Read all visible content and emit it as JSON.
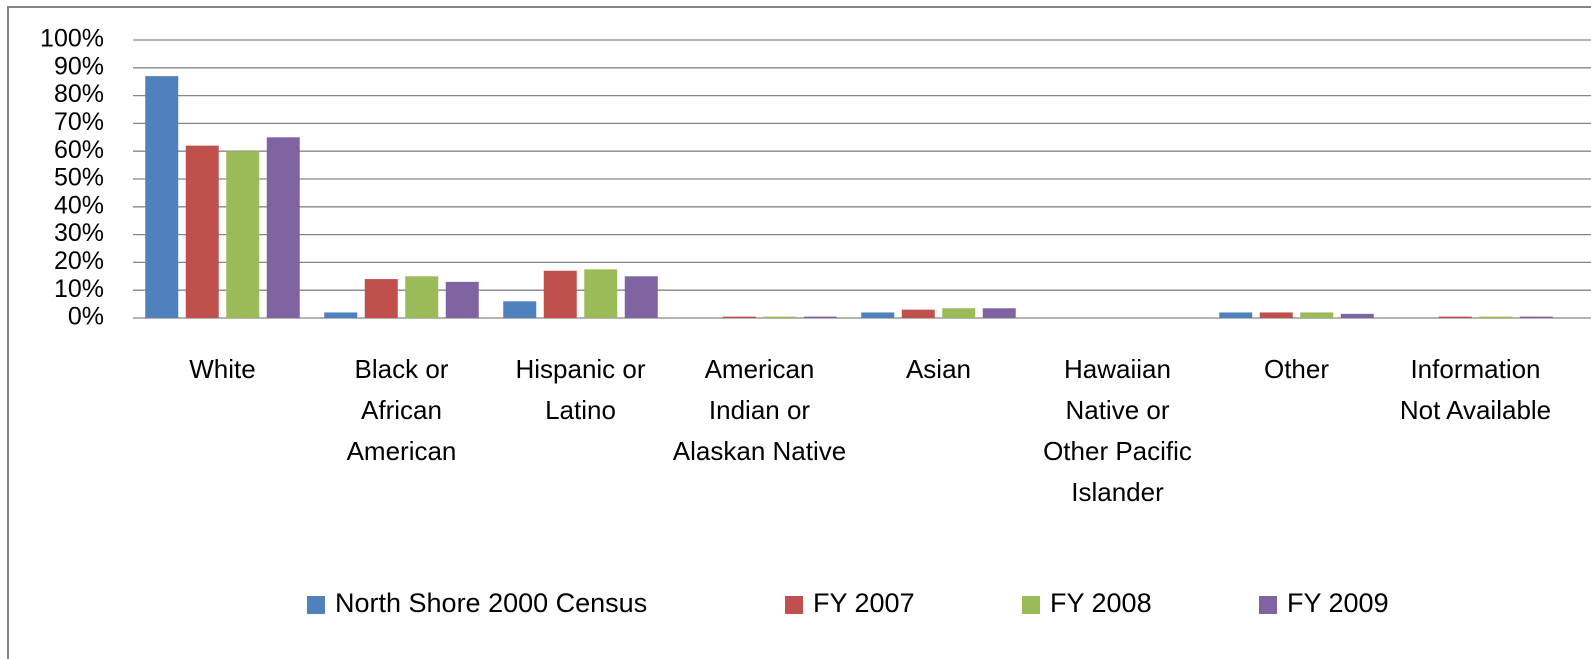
{
  "chart_data": {
    "type": "bar",
    "categories": [
      "White",
      "Black or African American",
      "Hispanic or Latino",
      "American Indian or Alaskan Native",
      "Asian",
      "Hawaiian Native or Other Pacific Islander",
      "Other",
      "Information Not Available"
    ],
    "series": [
      {
        "name": "North Shore 2000 Census",
        "color": "#4f81bd",
        "values": [
          87,
          2,
          6,
          0,
          2,
          0,
          2,
          0
        ]
      },
      {
        "name": "FY 2007",
        "color": "#c0504d",
        "values": [
          62,
          14,
          17,
          0.5,
          3,
          0,
          2,
          0.5
        ]
      },
      {
        "name": "FY 2008",
        "color": "#9bbb59",
        "values": [
          60,
          15,
          17.5,
          0.5,
          3.5,
          0,
          2,
          0.5
        ]
      },
      {
        "name": "FY 2009",
        "color": "#8064a2",
        "values": [
          65,
          13,
          15,
          0.5,
          3.5,
          0,
          1.5,
          0.5
        ]
      }
    ],
    "ylim": [
      0,
      100
    ],
    "yticks": [
      {
        "value": 0,
        "label": "0%"
      },
      {
        "value": 10,
        "label": "10%"
      },
      {
        "value": 20,
        "label": "20%"
      },
      {
        "value": 30,
        "label": "30%"
      },
      {
        "value": 40,
        "label": "40%"
      },
      {
        "value": 50,
        "label": "50%"
      },
      {
        "value": 60,
        "label": "60%"
      },
      {
        "value": 70,
        "label": "70%"
      },
      {
        "value": 80,
        "label": "80%"
      },
      {
        "value": 90,
        "label": "90%"
      },
      {
        "value": 100,
        "label": "100%"
      }
    ],
    "grid": true,
    "legend": "bottom"
  }
}
